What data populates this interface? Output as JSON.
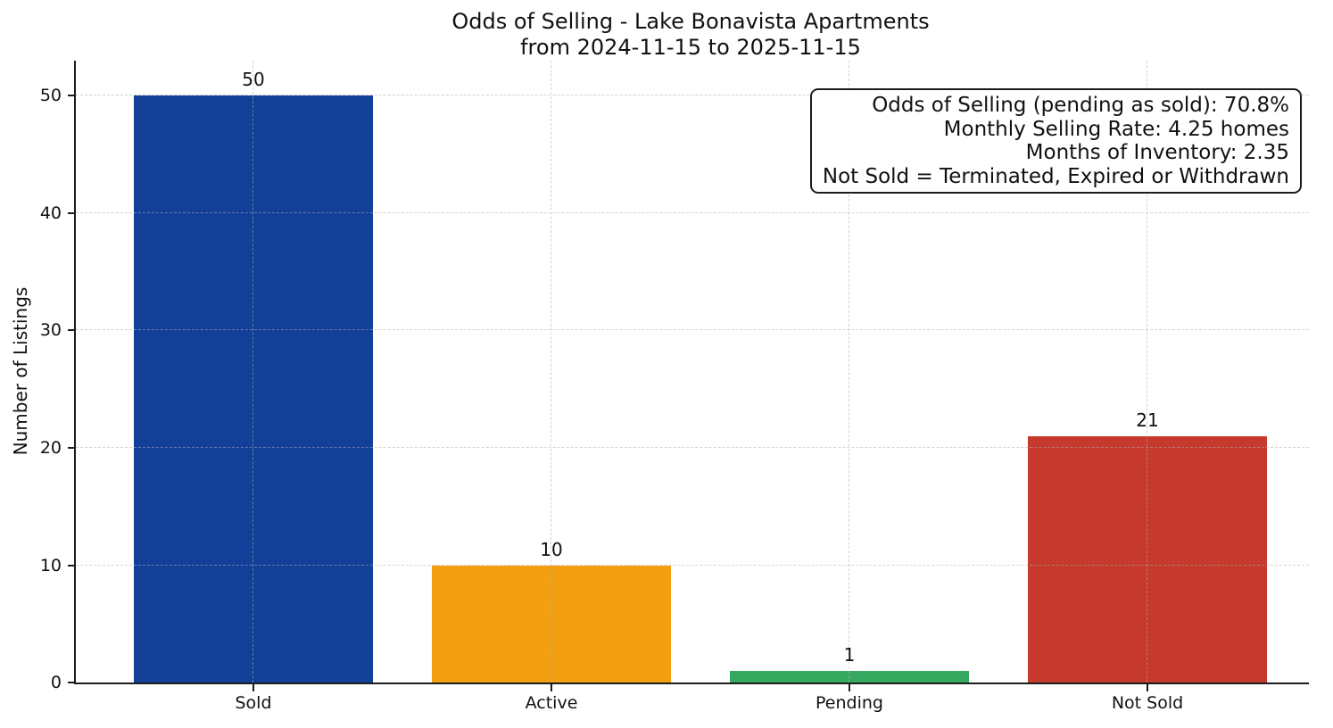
{
  "chart_data": {
    "type": "bar",
    "title": "Odds of Selling - Lake Bonavista Apartments\nfrom 2024-11-15 to 2025-11-15",
    "title_lines": [
      "Odds of Selling - Lake Bonavista Apartments",
      "from 2024-11-15 to 2025-11-15"
    ],
    "categories": [
      "Sold",
      "Active",
      "Pending",
      "Not Sold"
    ],
    "values": [
      50,
      10,
      1,
      21
    ],
    "bar_colors": [
      "#123f97",
      "#f2a012",
      "#37a85f",
      "#c53a2c"
    ],
    "xlabel": "",
    "ylabel": "Number of Listings",
    "yticks": [
      0,
      10,
      20,
      30,
      40,
      50
    ],
    "ylim": [
      0,
      53
    ],
    "grid": {
      "style": "dashed",
      "axes": "both",
      "color": "#d8d8d8"
    },
    "legend": "none",
    "annotation_box": {
      "lines": [
        "Odds of Selling (pending as sold): 70.8%",
        "Monthly Selling Rate: 4.25 homes",
        "Months of Inventory: 2.35",
        "Not Sold = Terminated, Expired or Withdrawn"
      ],
      "position": "top-right",
      "border_color": "#1c1c1c"
    }
  }
}
